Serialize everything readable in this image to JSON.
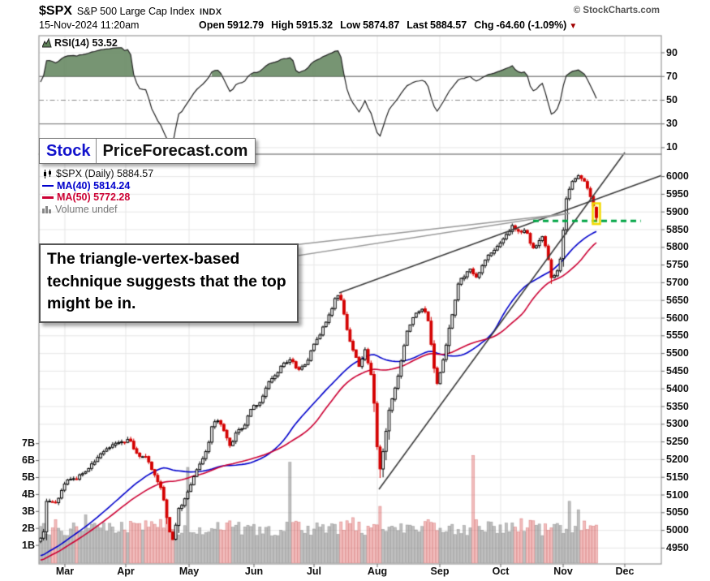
{
  "header": {
    "symbol": "$SPX",
    "name": "S&P 500 Large Cap Index",
    "exchange": "INDX",
    "credit": "© StockCharts.com",
    "datetime": "15-Nov-2024 11:20am",
    "quote": {
      "open_label": "Open",
      "open": "5912.79",
      "high_label": "High",
      "high": "5915.32",
      "low_label": "Low",
      "low": "5874.87",
      "last_label": "Last",
      "last": "5884.57",
      "chg_label": "Chg",
      "chg": "-64.60 (-1.09%)",
      "arrow_down_icon": "▼"
    }
  },
  "rsi_panel": {
    "label": "RSI(14) 53.52"
  },
  "watermark": {
    "part1": "Stock",
    "part2": "PriceForecast.com"
  },
  "legend": {
    "series": "$SPX (Daily) 5884.57",
    "ma40": "MA(40) 5814.24",
    "ma50": "MA(50) 5772.28",
    "volume": "Volume undef"
  },
  "annotation": {
    "text": "The triangle-vertex-based technique suggests that the top might be in."
  },
  "chart_data": {
    "type": "candlestick",
    "symbol": "$SPX",
    "timeframe": "Daily",
    "title": "S&P 500 Large Cap Index",
    "last_quote": {
      "open": 5912.79,
      "high": 5915.32,
      "low": 5874.87,
      "close": 5884.57,
      "change": -64.6,
      "change_pct": -1.09
    },
    "rsi": {
      "period": 14,
      "last": 53.52,
      "overbought": 70,
      "oversold": 30,
      "mid": 50,
      "ticks": [
        90,
        70,
        50,
        30,
        10
      ]
    },
    "ma40_last": 5814.24,
    "ma50_last": 5772.28,
    "price_axis_ticks": [
      6000,
      5950,
      5900,
      5850,
      5800,
      5750,
      5700,
      5650,
      5600,
      5550,
      5500,
      5450,
      5400,
      5350,
      5300,
      5250,
      5200,
      5150,
      5100,
      5050,
      5000,
      4950
    ],
    "price_axis_range": [
      4905,
      6055
    ],
    "volume_axis_ticks_billions": [
      7,
      6,
      5,
      4,
      3,
      2,
      1
    ],
    "months": [
      {
        "label": "Mar",
        "t": 0.0417
      },
      {
        "label": "Apr",
        "t": 0.1395
      },
      {
        "label": "May",
        "t": 0.2412
      },
      {
        "label": "Jun",
        "t": 0.3455
      },
      {
        "label": "Jul",
        "t": 0.442
      },
      {
        "label": "Aug",
        "t": 0.5437
      },
      {
        "label": "Sep",
        "t": 0.6441
      },
      {
        "label": "Oct",
        "t": 0.7419
      },
      {
        "label": "Nov",
        "t": 0.8423
      },
      {
        "label": "Dec",
        "t": 0.9413
      }
    ],
    "t_first": 0.0026,
    "t_last": 0.8957,
    "candle_count": 186,
    "price_path": [
      [
        0.0026,
        4975
      ],
      [
        0.0065,
        4978
      ],
      [
        0.0117,
        5085
      ],
      [
        0.0183,
        5082
      ],
      [
        0.0261,
        5078
      ],
      [
        0.0339,
        5096
      ],
      [
        0.0417,
        5137
      ],
      [
        0.0613,
        5150
      ],
      [
        0.0808,
        5175
      ],
      [
        0.1004,
        5220
      ],
      [
        0.12,
        5245
      ],
      [
        0.1356,
        5250
      ],
      [
        0.146,
        5255
      ],
      [
        0.1591,
        5210
      ],
      [
        0.1721,
        5205
      ],
      [
        0.189,
        5150
      ],
      [
        0.1982,
        5110
      ],
      [
        0.2073,
        5015
      ],
      [
        0.2151,
        4970
      ],
      [
        0.2243,
        5060
      ],
      [
        0.2347,
        5090
      ],
      [
        0.2438,
        5130
      ],
      [
        0.2569,
        5180
      ],
      [
        0.2699,
        5225
      ],
      [
        0.279,
        5300
      ],
      [
        0.2894,
        5310
      ],
      [
        0.2999,
        5270
      ],
      [
        0.309,
        5235
      ],
      [
        0.3181,
        5280
      ],
      [
        0.3285,
        5290
      ],
      [
        0.3416,
        5350
      ],
      [
        0.3546,
        5355
      ],
      [
        0.3677,
        5420
      ],
      [
        0.3807,
        5435
      ],
      [
        0.3937,
        5475
      ],
      [
        0.4068,
        5480
      ],
      [
        0.4172,
        5450
      ],
      [
        0.4302,
        5475
      ],
      [
        0.4433,
        5530
      ],
      [
        0.4563,
        5570
      ],
      [
        0.4694,
        5620
      ],
      [
        0.4785,
        5665
      ],
      [
        0.485,
        5655
      ],
      [
        0.4954,
        5560
      ],
      [
        0.5046,
        5510
      ],
      [
        0.515,
        5460
      ],
      [
        0.5241,
        5515
      ],
      [
        0.5345,
        5430
      ],
      [
        0.5398,
        5340
      ],
      [
        0.5463,
        5150
      ],
      [
        0.5528,
        5220
      ],
      [
        0.5606,
        5320
      ],
      [
        0.5698,
        5390
      ],
      [
        0.5789,
        5450
      ],
      [
        0.5893,
        5550
      ],
      [
        0.5997,
        5600
      ],
      [
        0.6089,
        5620
      ],
      [
        0.618,
        5630
      ],
      [
        0.6258,
        5590
      ],
      [
        0.6323,
        5500
      ],
      [
        0.6388,
        5410
      ],
      [
        0.648,
        5470
      ],
      [
        0.6571,
        5550
      ],
      [
        0.6649,
        5620
      ],
      [
        0.6741,
        5700
      ],
      [
        0.6832,
        5720
      ],
      [
        0.6936,
        5740
      ],
      [
        0.7041,
        5710
      ],
      [
        0.7132,
        5750
      ],
      [
        0.7223,
        5780
      ],
      [
        0.7327,
        5790
      ],
      [
        0.7432,
        5815
      ],
      [
        0.7523,
        5840
      ],
      [
        0.7614,
        5860
      ],
      [
        0.7718,
        5840
      ],
      [
        0.7823,
        5850
      ],
      [
        0.7914,
        5800
      ],
      [
        0.8005,
        5810
      ],
      [
        0.8083,
        5830
      ],
      [
        0.8175,
        5780
      ],
      [
        0.824,
        5705
      ],
      [
        0.8318,
        5730
      ],
      [
        0.8396,
        5780
      ],
      [
        0.8462,
        5930
      ],
      [
        0.854,
        5970
      ],
      [
        0.8605,
        5995
      ],
      [
        0.8683,
        6000
      ],
      [
        0.8761,
        5985
      ],
      [
        0.8853,
        5945
      ],
      [
        0.8957,
        5885
      ]
    ],
    "volume_spikes_billions": [
      [
        0.0743,
        2.8
      ],
      [
        0.2373,
        5.6
      ],
      [
        0.4042,
        5.9
      ],
      [
        0.5463,
        3.3
      ],
      [
        0.6975,
        6.3
      ],
      [
        0.8501,
        3.6
      ],
      [
        0.8657,
        3.1
      ]
    ],
    "trendlines": [
      {
        "name": "steep-uptrend-line",
        "from": [
          0.5463,
          5116
        ],
        "to": [
          0.9413,
          6068
        ]
      },
      {
        "name": "shallow-uptrend-line",
        "from": [
          0.4824,
          5671
        ],
        "to": [
          1.0,
          6003
        ]
      }
    ],
    "callout_tip": [
      0.8527,
      5896
    ],
    "dashed_support": {
      "price": 5874.87,
      "t_start": 0.794,
      "t_end": 0.967
    },
    "highlight_last_candle": true,
    "colors": {
      "up_candle": "#000000",
      "down_candle": "#d40000",
      "ma40": "#0000cc",
      "ma50": "#cc0033",
      "volume_up": "rgba(130,130,130,0.50)",
      "volume_down": "rgba(225,100,100,0.42)",
      "rsi_line": "#222222",
      "rsi_fill": "rgba(95,130,90,0.85)",
      "trendline": "#3c3c3c",
      "dashed_line": "#00a544",
      "highlight": "#f2d900",
      "grid": "#e7e7e7",
      "frame": "#999999"
    }
  }
}
